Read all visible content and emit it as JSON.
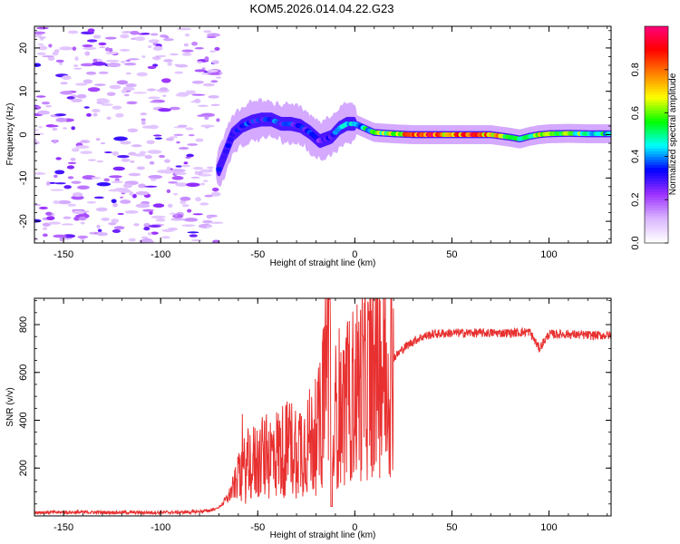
{
  "title": "KOM5.2026.014.04.22.G23",
  "chart_data": [
    {
      "type": "heatmap",
      "xlabel": "Height of straight line (km)",
      "ylabel": "Frequency (Hz)",
      "xlim": [
        -165,
        132
      ],
      "ylim": [
        -25,
        25
      ],
      "xticks": [
        -150,
        -100,
        -50,
        0,
        50,
        100
      ],
      "xtick_labels": [
        "-150",
        "-100",
        "-50",
        "0",
        "50",
        "100"
      ],
      "yticks": [
        -20,
        -10,
        0,
        10,
        20
      ],
      "ytick_labels": [
        "-20",
        "-10",
        "0",
        "10",
        "20"
      ],
      "colorbar": {
        "label": "Normalized spectral amplitude",
        "range": [
          0,
          1
        ],
        "ticks": [
          0.0,
          0.2,
          0.4,
          0.6,
          0.8
        ],
        "tick_labels": [
          "0.0",
          "0.2",
          "0.4",
          "0.6",
          "0.8"
        ],
        "colormap": [
          "#ffffff",
          "#d9b3ff",
          "#9b30ff",
          "#0000ff",
          "#00ffff",
          "#00ff00",
          "#ffff00",
          "#ff8000",
          "#ff0000",
          "#ff0080"
        ]
      },
      "ridge": {
        "x": [
          -70,
          -63,
          -58,
          -53,
          -48,
          -43,
          -38,
          -33,
          -28,
          -23,
          -18,
          -15,
          -12,
          -8,
          -4,
          0,
          5,
          10,
          20,
          30,
          40,
          50,
          60,
          70,
          80,
          85,
          90,
          95,
          100,
          110,
          120,
          132
        ],
        "freq": [
          -8,
          0,
          2,
          3,
          3.5,
          3.5,
          2.5,
          2.5,
          2,
          0.5,
          -1.5,
          -1,
          -0.5,
          1.5,
          2.5,
          2.5,
          1.5,
          0.5,
          0.2,
          0,
          0,
          0,
          0,
          0,
          -0.6,
          -1,
          -0.4,
          0,
          0.2,
          0.3,
          0.2,
          0.2
        ],
        "amplitude": [
          0.3,
          0.3,
          0.35,
          0.3,
          0.3,
          0.35,
          0.3,
          0.3,
          0.3,
          0.3,
          0.25,
          0.3,
          0.3,
          0.35,
          0.4,
          0.4,
          0.45,
          0.5,
          0.6,
          0.75,
          0.8,
          0.7,
          0.8,
          0.75,
          0.5,
          0.45,
          0.5,
          0.6,
          0.6,
          0.55,
          0.5,
          0.45
        ]
      }
    },
    {
      "type": "line",
      "xlabel": "Height of straight line (km)",
      "ylabel": "SNR (v/v)",
      "xlim": [
        -165,
        132
      ],
      "ylim": [
        0,
        910
      ],
      "xticks": [
        -150,
        -100,
        -50,
        0,
        50,
        100
      ],
      "xtick_labels": [
        "-150",
        "-100",
        "-50",
        "0",
        "50",
        "100"
      ],
      "yticks": [
        200,
        400,
        600,
        800
      ],
      "ytick_labels": [
        "200",
        "400",
        "600",
        "800"
      ],
      "color": "#e83030",
      "series": [
        {
          "name": "SNR",
          "x": [
            -165,
            -150,
            -130,
            -110,
            -90,
            -80,
            -75,
            -70,
            -65,
            -60,
            -55,
            -50,
            -45,
            -40,
            -35,
            -30,
            -25,
            -20,
            -17,
            -15,
            -13,
            -12,
            -10,
            -8,
            -5,
            0,
            5,
            10,
            15,
            20,
            25,
            30,
            35,
            40,
            50,
            60,
            70,
            80,
            90,
            95,
            100,
            110,
            120,
            132
          ],
          "y": [
            15,
            15,
            15,
            14,
            15,
            18,
            22,
            35,
            80,
            160,
            210,
            230,
            245,
            265,
            280,
            290,
            300,
            330,
            390,
            650,
            900,
            80,
            420,
            460,
            450,
            520,
            560,
            590,
            620,
            660,
            700,
            730,
            750,
            760,
            765,
            765,
            765,
            765,
            770,
            700,
            760,
            760,
            755,
            755
          ]
        }
      ]
    }
  ]
}
